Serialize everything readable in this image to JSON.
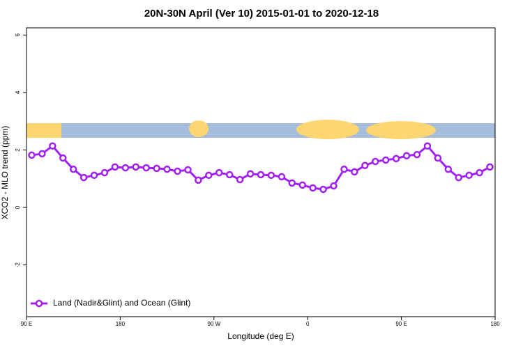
{
  "chart_data": {
    "type": "line",
    "title": "20N-30N April (Ver 10)   2015-01-01 to 2020-12-18",
    "x_label": "Longitude (deg E)",
    "y_label": "XCO2 - MLO trend (ppm)",
    "x": [
      95,
      105,
      115,
      125,
      135,
      145,
      155,
      165,
      175,
      185,
      195,
      205,
      215,
      225,
      235,
      245,
      255,
      265,
      275,
      285,
      295,
      305,
      315,
      325,
      335,
      345,
      355,
      365,
      375,
      385,
      395,
      405,
      415,
      425,
      435,
      445,
      455,
      465,
      475,
      485,
      495,
      505,
      515,
      525,
      535
    ],
    "series": [
      {
        "name": "Land (Nadir&Glint) and Ocean (Glint)",
        "color": "#a020f0",
        "values": [
          1.82,
          1.87,
          2.14,
          1.72,
          1.33,
          1.04,
          1.12,
          1.21,
          1.41,
          1.38,
          1.41,
          1.38,
          1.36,
          1.33,
          1.26,
          1.31,
          0.95,
          1.12,
          1.21,
          1.14,
          0.97,
          1.17,
          1.14,
          1.12,
          1.07,
          0.85,
          0.78,
          0.68,
          0.63,
          0.75,
          1.33,
          1.24,
          1.46,
          1.6,
          1.65,
          1.7,
          1.8,
          1.84,
          2.14,
          1.72,
          1.33,
          1.04,
          1.12,
          1.21,
          1.41
        ]
      }
    ],
    "xlim": [
      90,
      540
    ],
    "xticks": [
      {
        "value": 90,
        "label": "90 E"
      },
      180,
      {
        "value": 270,
        "label": "90 W"
      },
      {
        "value": 360,
        "label": "0"
      },
      {
        "value": 450,
        "label": "90 E"
      },
      {
        "value": 540,
        "label": "180"
      }
    ],
    "ylim": [
      -3.8,
      6.25
    ],
    "yticks": [
      -2,
      0,
      2,
      4,
      6
    ],
    "legend": "bottom-left"
  }
}
